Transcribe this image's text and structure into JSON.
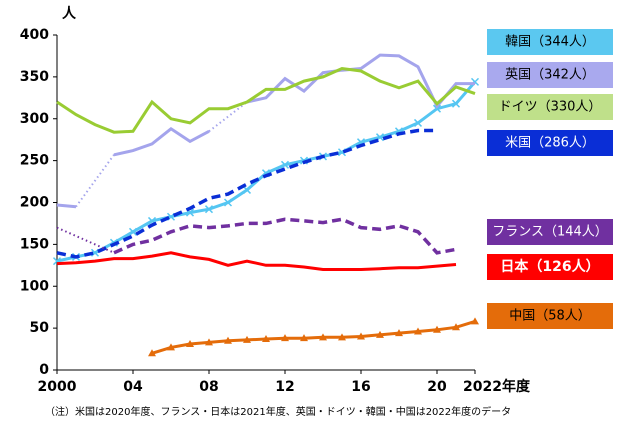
{
  "chart_data": {
    "type": "line",
    "y_unit": "人",
    "note": "（注）米国は2020年度、フランス・日本は2021年度、英国・ドイツ・韓国・中国は2022年度のデータ",
    "x": [
      2000,
      2001,
      2002,
      2003,
      2004,
      2005,
      2006,
      2007,
      2008,
      2009,
      2010,
      2011,
      2012,
      2013,
      2014,
      2015,
      2016,
      2017,
      2018,
      2019,
      2020,
      2021,
      2022
    ],
    "xlim": [
      2000,
      2022
    ],
    "xticks": [
      2000,
      {
        "value": 2004,
        "label": "04"
      },
      {
        "value": 2008,
        "label": "08"
      },
      {
        "value": 2012,
        "label": "12"
      },
      {
        "value": 2016,
        "label": "16"
      },
      {
        "value": 2020,
        "label": "20"
      },
      {
        "value": 2022,
        "label": "2022年度"
      }
    ],
    "ylim": [
      0,
      400
    ],
    "yticks": [
      0,
      50,
      100,
      150,
      200,
      250,
      300,
      350,
      400
    ],
    "series": [
      {
        "name": "韓国（344人）",
        "color": "#55c6f2",
        "legend_color": "#5bc8f0",
        "marker": "x",
        "dash": false,
        "values": [
          130,
          135,
          140,
          152,
          165,
          178,
          183,
          188,
          192,
          200,
          215,
          235,
          245,
          250,
          255,
          260,
          272,
          278,
          285,
          295,
          312,
          318,
          344
        ]
      },
      {
        "name": "英国（342人）",
        "color": "#a4a4ec",
        "legend_color": "#a9a9ee",
        "dash": false,
        "values": [
          197,
          195,
          null,
          257,
          262,
          270,
          288,
          273,
          285,
          null,
          320,
          325,
          348,
          333,
          355,
          358,
          360,
          376,
          375,
          362,
          315,
          342,
          342
        ]
      },
      {
        "name": "ドイツ（330人）",
        "color": "#99cc33",
        "legend_color": "#bfe08a",
        "dash": false,
        "values": [
          320,
          305,
          293,
          284,
          285,
          320,
          300,
          295,
          312,
          312,
          320,
          335,
          335,
          345,
          350,
          360,
          357,
          345,
          337,
          345,
          318,
          338,
          330
        ]
      },
      {
        "name": "米国（286人）",
        "color": "#0a2ed6",
        "legend_color": "#0a2ed6",
        "dash": true,
        "values": [
          140,
          135,
          140,
          150,
          160,
          173,
          183,
          193,
          205,
          210,
          222,
          232,
          240,
          248,
          255,
          260,
          268,
          275,
          282,
          286,
          286,
          null,
          null
        ]
      },
      {
        "name": "フランス（144人）",
        "color": "#7030a0",
        "legend_color": "#7030a0",
        "dash": true,
        "values": [
          170,
          null,
          null,
          140,
          150,
          155,
          165,
          172,
          170,
          172,
          175,
          175,
          180,
          178,
          176,
          180,
          170,
          168,
          172,
          165,
          140,
          144,
          null
        ]
      },
      {
        "name": "日本（126人）",
        "color": "#ff0000",
        "legend_color": "#ff0000",
        "dash": false,
        "values": [
          127,
          128,
          130,
          133,
          133,
          136,
          140,
          135,
          132,
          125,
          130,
          125,
          125,
          123,
          120,
          120,
          120,
          121,
          122,
          122,
          124,
          126,
          null
        ]
      },
      {
        "name": "中国（58人）",
        "color": "#e46c0a",
        "legend_color": "#e46c0a",
        "marker": "triangle",
        "dash": false,
        "values": [
          null,
          null,
          null,
          null,
          null,
          20,
          27,
          31,
          33,
          35,
          36,
          37,
          38,
          38,
          39,
          39,
          40,
          42,
          44,
          46,
          48,
          51,
          58
        ]
      }
    ]
  }
}
